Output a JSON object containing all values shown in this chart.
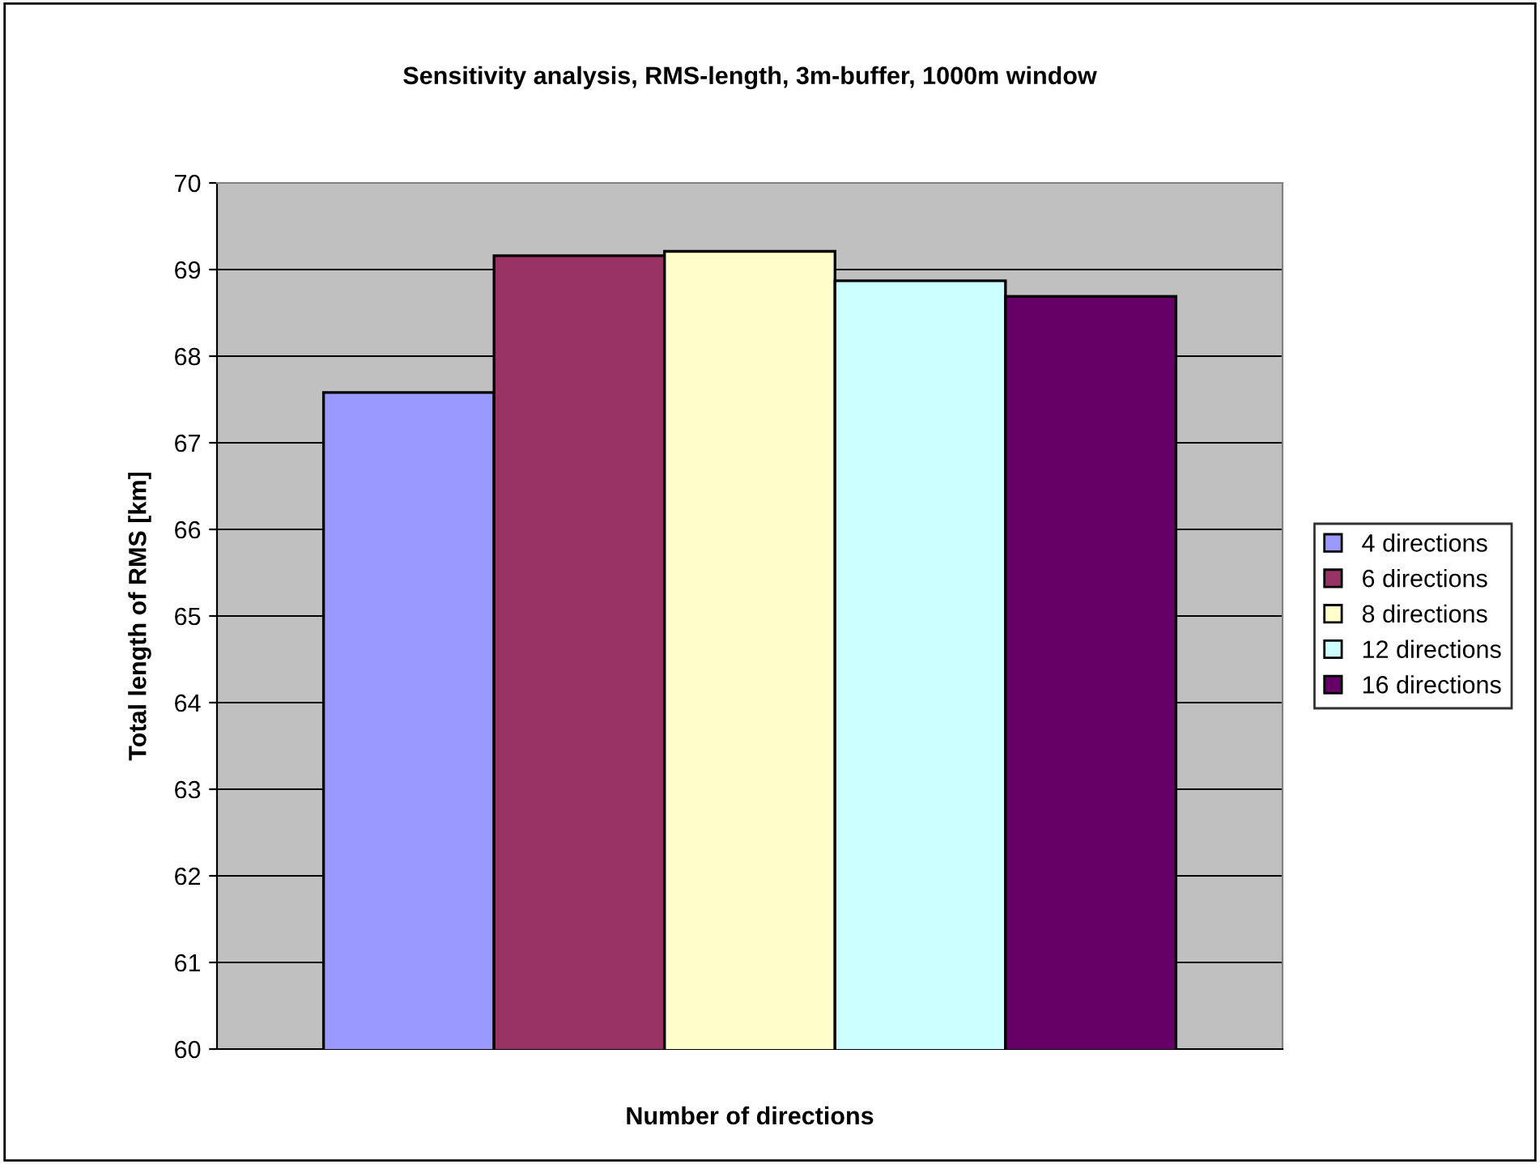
{
  "chart_data": {
    "type": "bar",
    "title": "Sensitivity analysis, RMS-length, 3m-buffer, 1000m window",
    "xlabel": "Number of directions",
    "ylabel": "Total length of RMS [km]",
    "categories": [
      null
    ],
    "series": [
      {
        "name": "4 directions",
        "color": "#9999ff",
        "values": [
          67.58
        ]
      },
      {
        "name": "6 directions",
        "color": "#993366",
        "values": [
          69.16
        ]
      },
      {
        "name": "8 directions",
        "color": "#ffffcc",
        "values": [
          69.21
        ]
      },
      {
        "name": "12 directions",
        "color": "#ccffff",
        "values": [
          68.87
        ]
      },
      {
        "name": "16 directions",
        "color": "#660066",
        "values": [
          68.69
        ]
      }
    ],
    "ylim": [
      60,
      70
    ],
    "yticks": [
      60,
      61,
      62,
      63,
      64,
      65,
      66,
      67,
      68,
      69,
      70
    ],
    "grid": "y",
    "legend": "right"
  }
}
